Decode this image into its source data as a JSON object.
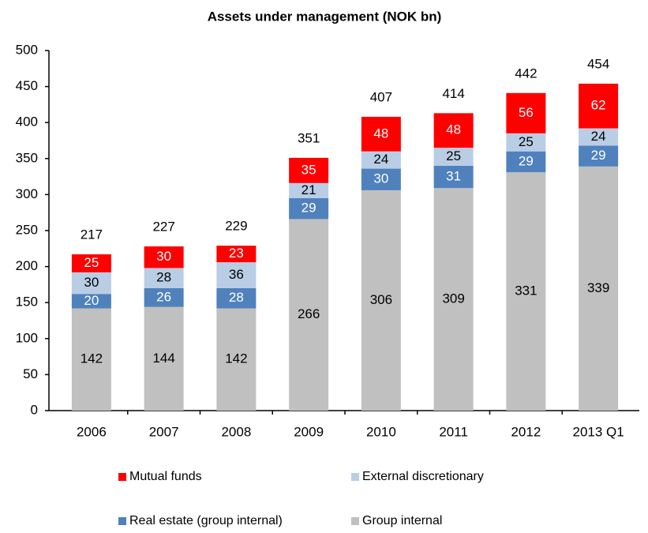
{
  "chart_data": {
    "type": "stacked_bar",
    "title": "Assets under management (NOK bn)",
    "categories": [
      "2006",
      "2007",
      "2008",
      "2009",
      "2010",
      "2011",
      "2012",
      "2013 Q1"
    ],
    "series": [
      {
        "name": "Group internal",
        "color": "#c0c0c0",
        "label_color": "#000000",
        "values": [
          142,
          144,
          142,
          266,
          306,
          309,
          331,
          339
        ]
      },
      {
        "name": "Real estate (group internal)",
        "color": "#4f81bd",
        "label_color": "#ffffff",
        "values": [
          20,
          26,
          28,
          29,
          30,
          31,
          29,
          29
        ]
      },
      {
        "name": "External discretionary",
        "color": "#b9cde5",
        "label_color": "#000000",
        "values": [
          30,
          28,
          36,
          21,
          24,
          25,
          25,
          24
        ]
      },
      {
        "name": "Mutual funds",
        "color": "#ff0000",
        "label_color": "#ffffff",
        "values": [
          25,
          30,
          23,
          35,
          48,
          48,
          56,
          62
        ]
      }
    ],
    "totals": [
      217,
      227,
      229,
      351,
      407,
      414,
      442,
      454
    ],
    "ylim": [
      0,
      500
    ],
    "yticks": [
      0,
      50,
      100,
      150,
      200,
      250,
      300,
      350,
      400,
      450,
      500
    ],
    "legend": "bottom"
  }
}
